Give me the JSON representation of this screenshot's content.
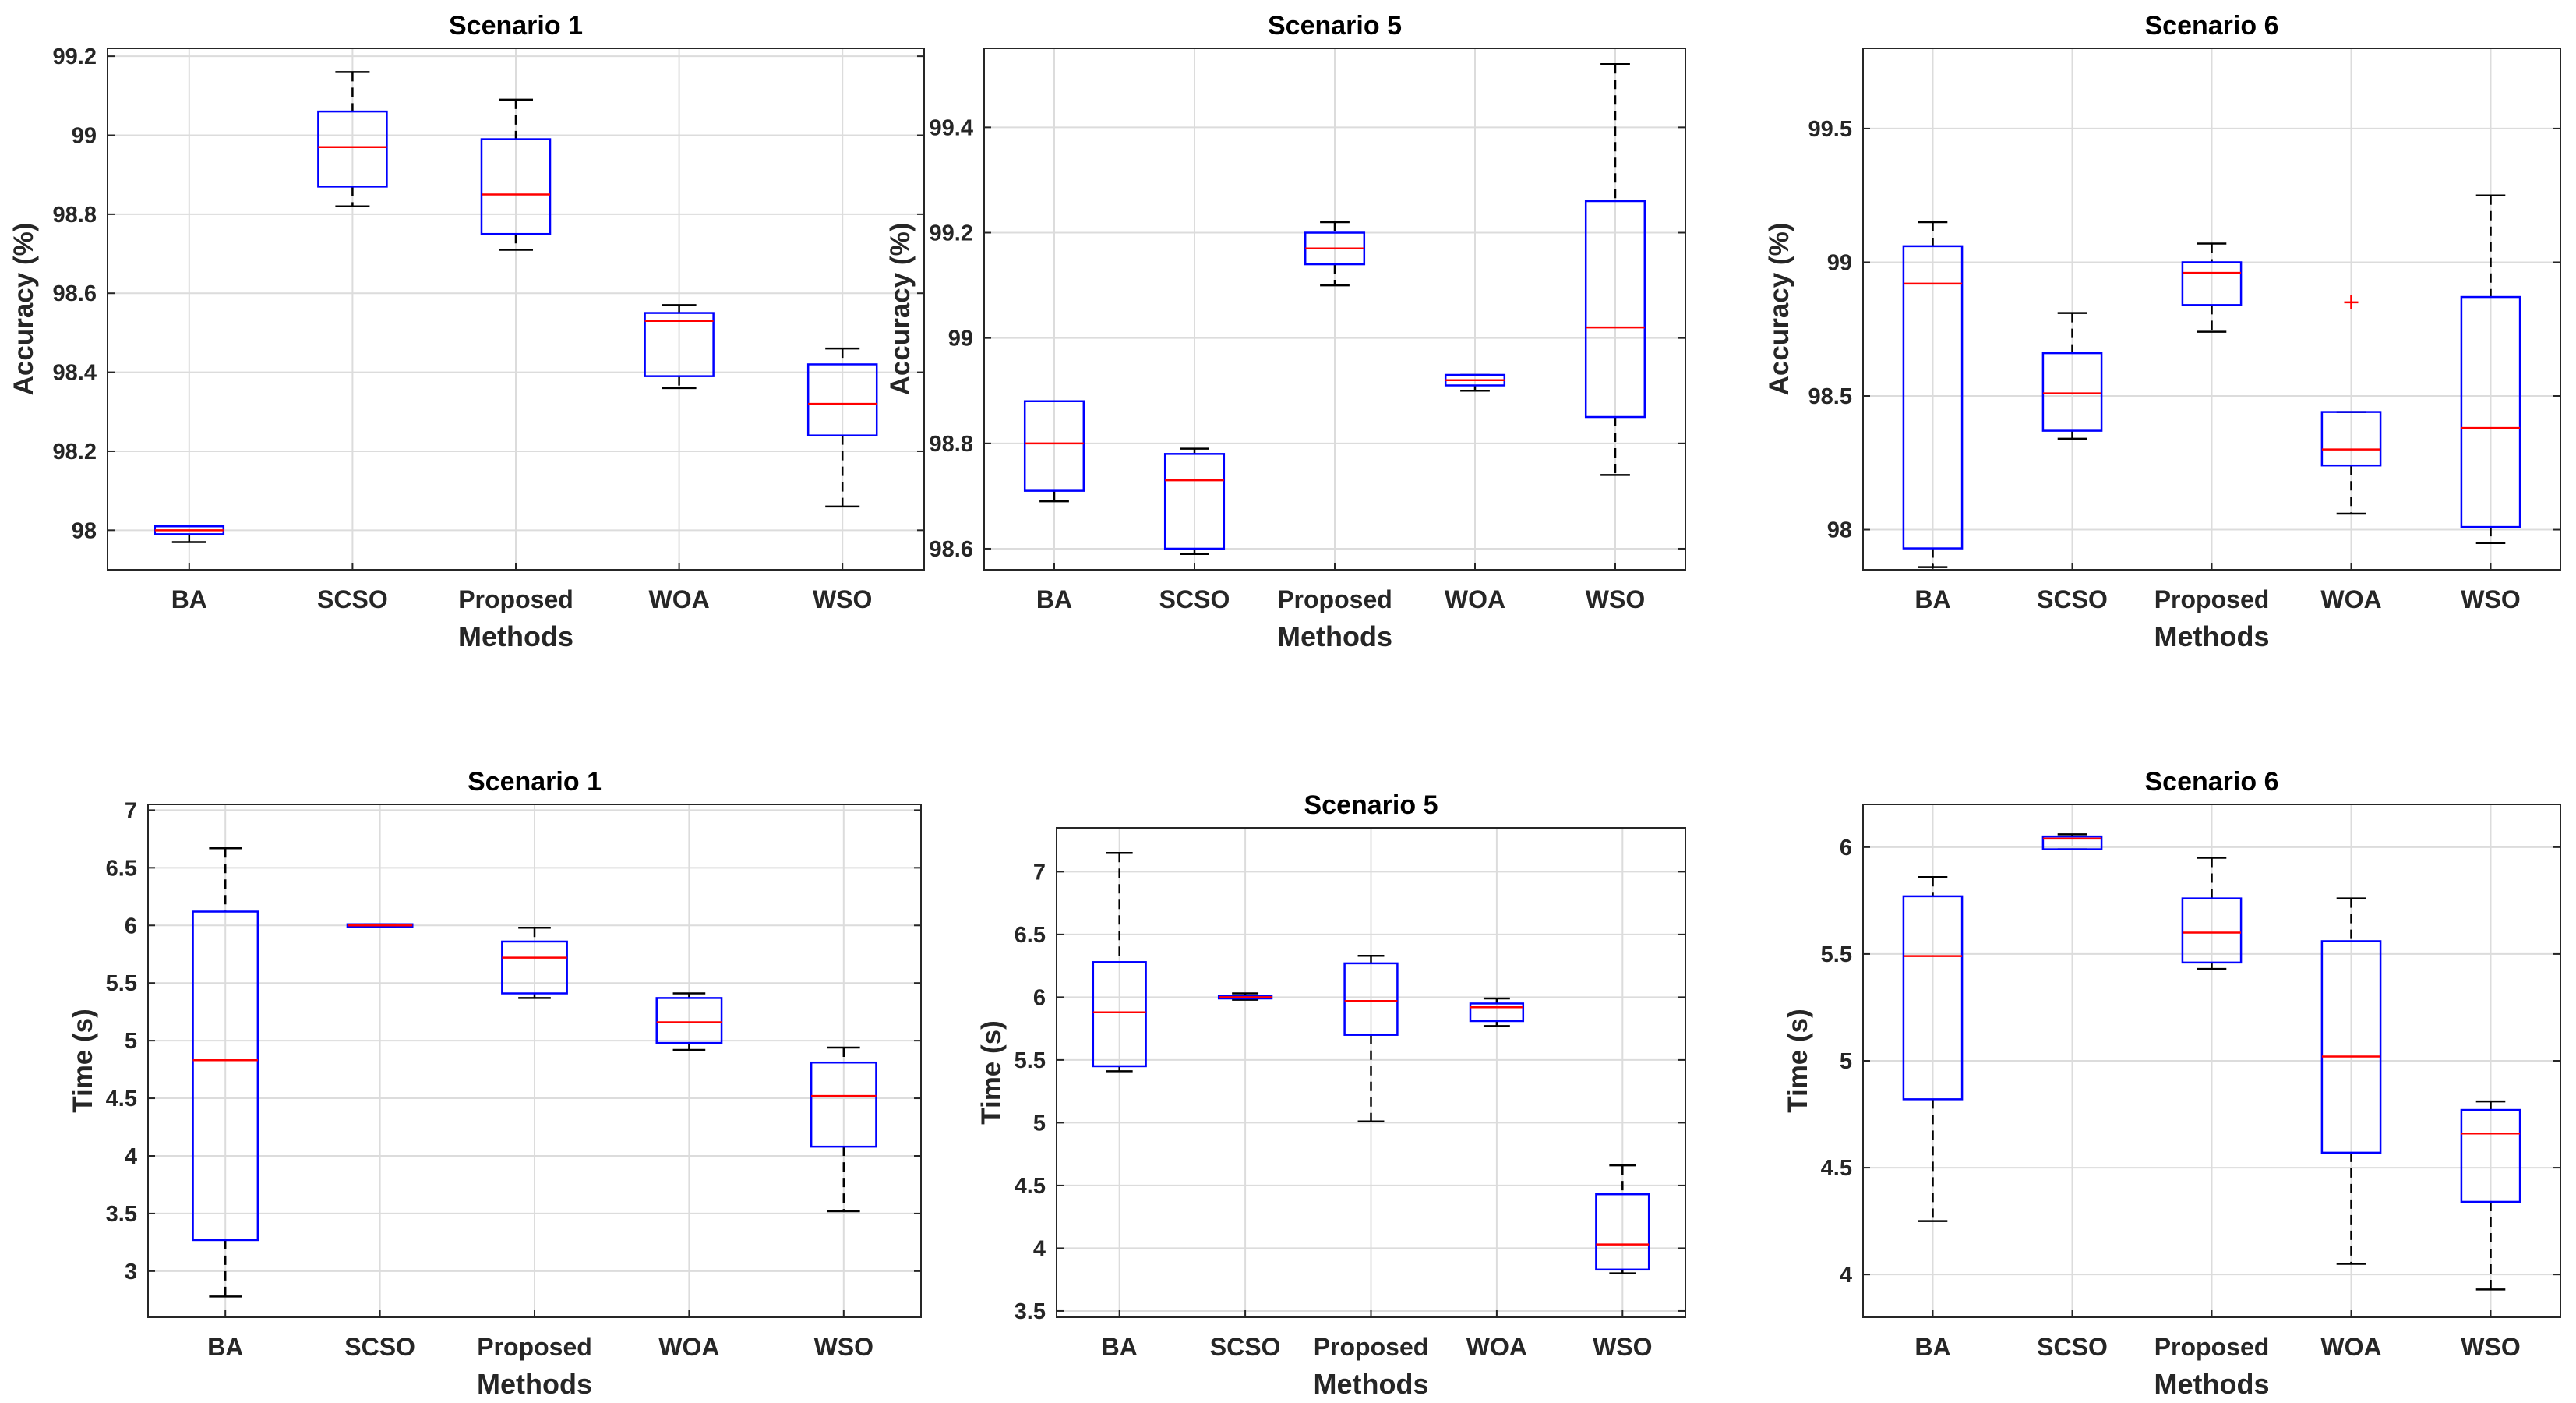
{
  "figure": {
    "colors": {
      "box": "#0000ff",
      "median": "#ff0000",
      "outlier": "#ff0000",
      "whisker": "#000000",
      "grid": "#dcdcdc",
      "axes": "#262626",
      "text": "#262626"
    }
  },
  "chart_data": [
    {
      "type": "box",
      "title": "Scenario 1",
      "xlabel": "Methods",
      "ylabel": "Accuracy (%)",
      "categories": [
        "BA",
        "SCSO",
        "Proposed",
        "WOA",
        "WSO"
      ],
      "ylim": [
        97.9,
        99.22
      ],
      "yticks": [
        98,
        98.2,
        98.4,
        98.6,
        98.8,
        99,
        99.2
      ],
      "ytick_labels": [
        "98",
        "98.2",
        "98.4",
        "98.6",
        "98.8",
        "99",
        "99.2"
      ],
      "grid": true,
      "boxes": [
        {
          "min": 97.97,
          "q1": 97.99,
          "median": 98.0,
          "q3": 98.01,
          "max": 98.01,
          "outliers": []
        },
        {
          "min": 98.82,
          "q1": 98.87,
          "median": 98.97,
          "q3": 99.06,
          "max": 99.16,
          "outliers": []
        },
        {
          "min": 98.71,
          "q1": 98.75,
          "median": 98.85,
          "q3": 98.99,
          "max": 99.09,
          "outliers": []
        },
        {
          "min": 98.36,
          "q1": 98.39,
          "median": 98.53,
          "q3": 98.55,
          "max": 98.57,
          "outliers": []
        },
        {
          "min": 98.06,
          "q1": 98.24,
          "median": 98.32,
          "q3": 98.42,
          "max": 98.46,
          "outliers": []
        }
      ]
    },
    {
      "type": "box",
      "title": "Scenario 5",
      "xlabel": "Methods",
      "ylabel": "Accuracy (%)",
      "categories": [
        "BA",
        "SCSO",
        "Proposed",
        "WOA",
        "WSO"
      ],
      "ylim": [
        98.56,
        99.55
      ],
      "yticks": [
        98.6,
        98.8,
        99,
        99.2,
        99.4
      ],
      "ytick_labels": [
        "98.6",
        "98.8",
        "99",
        "99.2",
        "99.4"
      ],
      "grid": true,
      "boxes": [
        {
          "min": 98.69,
          "q1": 98.71,
          "median": 98.8,
          "q3": 98.88,
          "max": 98.88,
          "outliers": []
        },
        {
          "min": 98.59,
          "q1": 98.6,
          "median": 98.73,
          "q3": 98.78,
          "max": 98.79,
          "outliers": []
        },
        {
          "min": 99.1,
          "q1": 99.14,
          "median": 99.17,
          "q3": 99.2,
          "max": 99.22,
          "outliers": []
        },
        {
          "min": 98.9,
          "q1": 98.91,
          "median": 98.92,
          "q3": 98.93,
          "max": 98.93,
          "outliers": []
        },
        {
          "min": 98.74,
          "q1": 98.85,
          "median": 99.02,
          "q3": 99.26,
          "max": 99.52,
          "outliers": []
        }
      ]
    },
    {
      "type": "box",
      "title": "Scenario 6",
      "xlabel": "Methods",
      "ylabel": "Accuracy (%)",
      "categories": [
        "BA",
        "SCSO",
        "Proposed",
        "WOA",
        "WSO"
      ],
      "ylim": [
        97.85,
        99.8
      ],
      "yticks": [
        98,
        98.5,
        99,
        99.5
      ],
      "ytick_labels": [
        "98",
        "98.5",
        "99",
        "99.5"
      ],
      "grid": true,
      "boxes": [
        {
          "min": 97.86,
          "q1": 97.93,
          "median": 98.92,
          "q3": 99.06,
          "max": 99.15,
          "outliers": []
        },
        {
          "min": 98.34,
          "q1": 98.37,
          "median": 98.51,
          "q3": 98.66,
          "max": 98.81,
          "outliers": []
        },
        {
          "min": 98.74,
          "q1": 98.84,
          "median": 98.96,
          "q3": 99.0,
          "max": 99.07,
          "outliers": []
        },
        {
          "min": 98.06,
          "q1": 98.24,
          "median": 98.3,
          "q3": 98.44,
          "max": 98.44,
          "outliers": [
            98.85
          ]
        },
        {
          "min": 97.95,
          "q1": 98.01,
          "median": 98.38,
          "q3": 98.87,
          "max": 99.25,
          "outliers": []
        }
      ]
    },
    {
      "type": "box",
      "title": "Scenario 1",
      "xlabel": "Methods",
      "ylabel": "Time (s)",
      "categories": [
        "BA",
        "SCSO",
        "Proposed",
        "WOA",
        "WSO"
      ],
      "ylim": [
        2.6,
        7.05
      ],
      "yticks": [
        3,
        3.5,
        4,
        4.5,
        5,
        5.5,
        6,
        6.5,
        7
      ],
      "ytick_labels": [
        "3",
        "3.5",
        "4",
        "4.5",
        "5",
        "5.5",
        "6",
        "6.5",
        "7"
      ],
      "grid": true,
      "boxes": [
        {
          "min": 2.78,
          "q1": 3.27,
          "median": 4.83,
          "q3": 6.12,
          "max": 6.67,
          "outliers": []
        },
        {
          "min": 5.99,
          "q1": 5.99,
          "median": 6.0,
          "q3": 6.01,
          "max": 6.01,
          "outliers": []
        },
        {
          "min": 5.37,
          "q1": 5.41,
          "median": 5.72,
          "q3": 5.86,
          "max": 5.98,
          "outliers": []
        },
        {
          "min": 4.92,
          "q1": 4.98,
          "median": 5.16,
          "q3": 5.37,
          "max": 5.41,
          "outliers": []
        },
        {
          "min": 3.52,
          "q1": 4.08,
          "median": 4.52,
          "q3": 4.81,
          "max": 4.94,
          "outliers": []
        }
      ]
    },
    {
      "type": "box",
      "title": "Scenario 5",
      "xlabel": "Methods",
      "ylabel": "Time (s)",
      "categories": [
        "BA",
        "SCSO",
        "Proposed",
        "WOA",
        "WSO"
      ],
      "ylim": [
        3.45,
        7.35
      ],
      "yticks": [
        3.5,
        4,
        4.5,
        5,
        5.5,
        6,
        6.5,
        7
      ],
      "ytick_labels": [
        "3.5",
        "4",
        "4.5",
        "5",
        "5.5",
        "6",
        "6.5",
        "7"
      ],
      "grid": true,
      "boxes": [
        {
          "min": 5.41,
          "q1": 5.45,
          "median": 5.88,
          "q3": 6.28,
          "max": 7.15,
          "outliers": []
        },
        {
          "min": 5.98,
          "q1": 5.99,
          "median": 6.0,
          "q3": 6.01,
          "max": 6.03,
          "outliers": []
        },
        {
          "min": 5.01,
          "q1": 5.7,
          "median": 5.97,
          "q3": 6.27,
          "max": 6.33,
          "outliers": []
        },
        {
          "min": 5.77,
          "q1": 5.81,
          "median": 5.92,
          "q3": 5.95,
          "max": 5.99,
          "outliers": []
        },
        {
          "min": 3.8,
          "q1": 3.83,
          "median": 4.03,
          "q3": 4.43,
          "max": 4.66,
          "outliers": []
        }
      ]
    },
    {
      "type": "box",
      "title": "Scenario 6",
      "xlabel": "Methods",
      "ylabel": "Time (s)",
      "categories": [
        "BA",
        "SCSO",
        "Proposed",
        "WOA",
        "WSO"
      ],
      "ylim": [
        3.8,
        6.2
      ],
      "yticks": [
        4,
        4.5,
        5,
        5.5,
        6
      ],
      "ytick_labels": [
        "4",
        "4.5",
        "5",
        "5.5",
        "6"
      ],
      "grid": true,
      "boxes": [
        {
          "min": 4.25,
          "q1": 4.82,
          "median": 5.49,
          "q3": 5.77,
          "max": 5.86,
          "outliers": []
        },
        {
          "min": 5.99,
          "q1": 5.99,
          "median": 6.04,
          "q3": 6.05,
          "max": 6.06,
          "outliers": []
        },
        {
          "min": 5.43,
          "q1": 5.46,
          "median": 5.6,
          "q3": 5.76,
          "max": 5.95,
          "outliers": []
        },
        {
          "min": 4.05,
          "q1": 4.57,
          "median": 5.02,
          "q3": 5.56,
          "max": 5.76,
          "outliers": []
        },
        {
          "min": 3.93,
          "q1": 4.34,
          "median": 4.66,
          "q3": 4.77,
          "max": 4.81,
          "outliers": []
        }
      ]
    }
  ]
}
